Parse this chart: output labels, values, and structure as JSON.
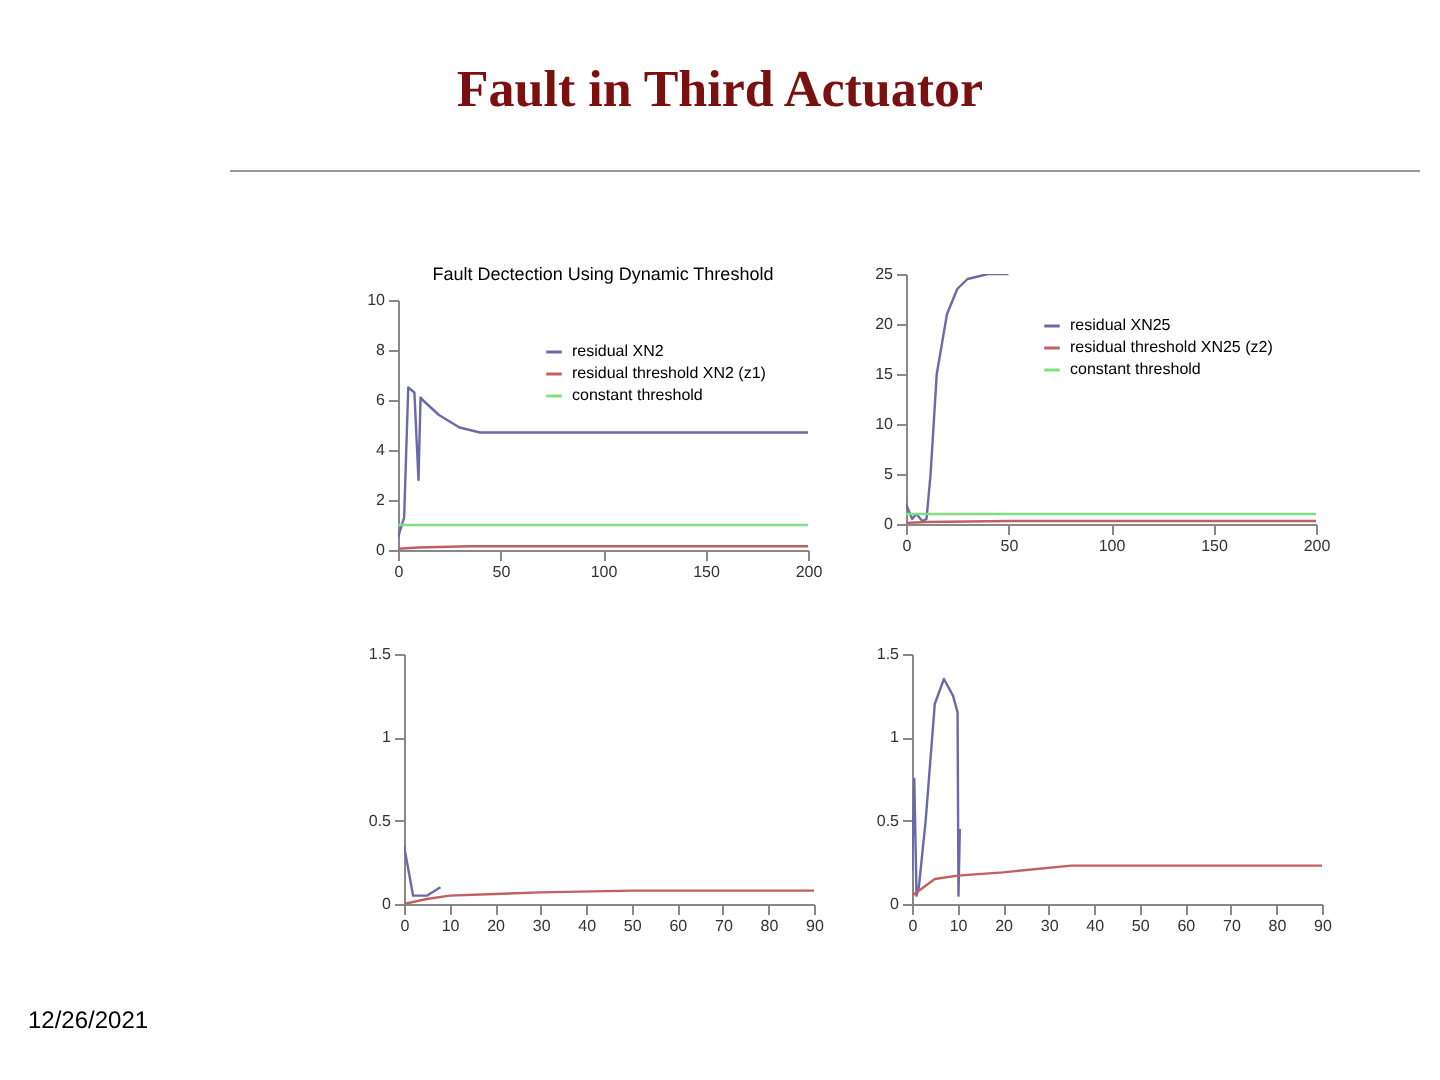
{
  "chart_data": [
    {
      "type": "other",
      "title": "Fault in Third Actuator",
      "annotations": [
        "12/26/2021"
      ]
    },
    {
      "type": "line",
      "title": "Fault Dectection Using Dynamic Threshold",
      "xlim": [
        0,
        200
      ],
      "xticks": [
        0,
        50,
        100,
        150,
        200
      ],
      "ylim": [
        0,
        10
      ],
      "yticks": [
        0,
        2,
        4,
        6,
        8,
        10
      ],
      "grid": false,
      "legend": "top right",
      "series": [
        {
          "name": "residual XN2",
          "color": "#6a6aa8",
          "x": [
            0,
            3,
            5,
            8,
            10,
            11,
            12,
            20,
            30,
            40,
            50,
            200
          ],
          "values": [
            0.5,
            1.3,
            6.5,
            6.3,
            2.8,
            6.1,
            6,
            5.4,
            4.9,
            4.7,
            4.7,
            4.7
          ]
        },
        {
          "name": "residual threshold XN2 (z1)",
          "color": "#c06060",
          "x": [
            0,
            10,
            35,
            200
          ],
          "values": [
            0.05,
            0.1,
            0.15,
            0.15
          ]
        },
        {
          "name": "constant threshold",
          "color": "#80e080",
          "x": [
            0,
            200
          ],
          "values": [
            1,
            1
          ]
        }
      ]
    },
    {
      "type": "line",
      "xlim": [
        0,
        200
      ],
      "xticks": [
        0,
        50,
        100,
        150,
        200
      ],
      "ylim": [
        0,
        25
      ],
      "yticks": [
        0,
        5,
        10,
        15,
        20,
        25
      ],
      "grid": false,
      "legend": "top right",
      "series": [
        {
          "name": "residual XN25",
          "color": "#6a6aa8",
          "x": [
            0,
            3,
            5,
            8,
            10,
            12,
            15,
            20,
            25,
            30,
            40,
            50
          ],
          "values": [
            2,
            0.5,
            1,
            0.3,
            0.5,
            5,
            15,
            21,
            23.5,
            24.5,
            25,
            25
          ]
        },
        {
          "name": "residual threshold XN25 (z2)",
          "color": "#c06060",
          "x": [
            0,
            10,
            50,
            200
          ],
          "values": [
            0.1,
            0.2,
            0.3,
            0.3
          ]
        },
        {
          "name": "constant threshold",
          "color": "#80e080",
          "x": [
            0,
            200
          ],
          "values": [
            1,
            1
          ]
        }
      ]
    },
    {
      "type": "line",
      "xlim": [
        0,
        90
      ],
      "xticks": [
        0,
        10,
        20,
        30,
        40,
        50,
        60,
        70,
        80,
        90
      ],
      "ylim": [
        0,
        1.5
      ],
      "yticks": [
        0,
        0.5,
        1,
        1.5
      ],
      "grid": false,
      "series": [
        {
          "color": "#6a6aa8",
          "x": [
            0,
            1,
            2,
            5,
            8
          ],
          "values": [
            0.35,
            0.2,
            0.05,
            0.05,
            0.1
          ]
        },
        {
          "color": "#c06060",
          "x": [
            0,
            5,
            10,
            20,
            30,
            50,
            90
          ],
          "values": [
            0,
            0.03,
            0.05,
            0.06,
            0.07,
            0.08,
            0.08
          ]
        }
      ]
    },
    {
      "type": "line",
      "xlim": [
        0,
        90
      ],
      "xticks": [
        0,
        10,
        20,
        30,
        40,
        50,
        60,
        70,
        80,
        90
      ],
      "ylim": [
        0,
        1.5
      ],
      "yticks": [
        0,
        0.5,
        1,
        1.5
      ],
      "grid": false,
      "series": [
        {
          "color": "#6a6aa8",
          "x": [
            0,
            0.5,
            1,
            1.5,
            3,
            5,
            7,
            9,
            10,
            10.2,
            10.5
          ],
          "values": [
            0.2,
            0.75,
            0.05,
            0.1,
            0.5,
            1.2,
            1.35,
            1.25,
            1.15,
            0.05,
            0.45
          ]
        },
        {
          "color": "#c06060",
          "x": [
            0,
            5,
            10,
            20,
            35,
            90
          ],
          "values": [
            0.05,
            0.15,
            0.17,
            0.19,
            0.23,
            0.23
          ]
        }
      ]
    }
  ]
}
